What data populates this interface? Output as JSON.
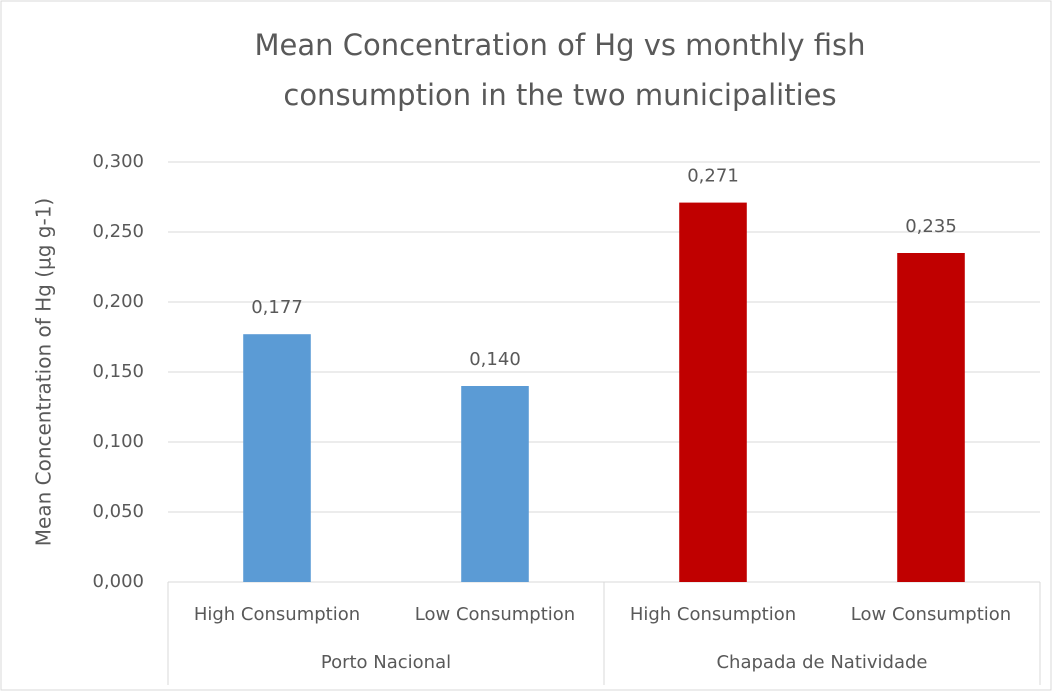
{
  "chart_data": {
    "type": "bar",
    "title": [
      "Mean Concentration of Hg vs monthly fish",
      "consumption in the two municipalities"
    ],
    "y_label": "Mean Concentration of Hg (µg g-1)",
    "groups": [
      {
        "name": "Porto Nacional",
        "color": "#5b9bd5",
        "categories": [
          "High Consumption",
          "Low Consumption"
        ],
        "values": [
          0.177,
          0.14
        ],
        "value_labels": [
          "0,177",
          "0,140"
        ]
      },
      {
        "name": "Chapada de Natividade",
        "color": "#c00000",
        "categories": [
          "High Consumption",
          "Low Consumption"
        ],
        "values": [
          0.271,
          0.235
        ],
        "value_labels": [
          "0,271",
          "0,235"
        ]
      }
    ],
    "ylim": [
      0,
      0.3
    ],
    "yticks": [
      {
        "value": 0,
        "label": "0,000"
      },
      {
        "value": 0.05,
        "label": "0,050"
      },
      {
        "value": 0.1,
        "label": "0,100"
      },
      {
        "value": 0.15,
        "label": "0,150"
      },
      {
        "value": 0.2,
        "label": "0,200"
      },
      {
        "value": 0.25,
        "label": "0,250"
      },
      {
        "value": 0.3,
        "label": "0,300"
      }
    ],
    "grid": true
  }
}
